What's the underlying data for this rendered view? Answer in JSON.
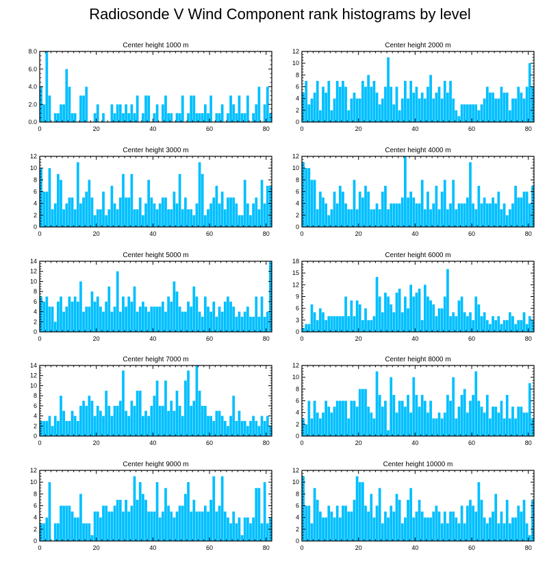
{
  "title": "Radiosonde V Wind Component rank histograms by level",
  "bar_color": "#00bfff",
  "chart_data": [
    {
      "type": "bar",
      "title": "Center height 1000 m",
      "xlim": [
        0,
        82
      ],
      "ylim": [
        0,
        8
      ],
      "xticks": [
        0,
        20,
        40,
        60,
        80
      ],
      "yticks": [
        0,
        2,
        4,
        6,
        8
      ],
      "ytick_labels": [
        "0.0",
        "2.0",
        "4.0",
        "6.0",
        "8.0"
      ],
      "values": [
        4,
        2,
        8,
        3,
        0,
        1,
        1,
        2,
        2,
        6,
        4,
        1,
        1,
        0,
        3,
        3,
        4,
        0,
        0,
        1,
        2,
        0,
        1,
        0,
        0,
        2,
        1,
        2,
        2,
        1,
        2,
        1,
        2,
        1,
        3,
        0,
        1,
        3,
        3,
        0,
        1,
        2,
        0,
        2,
        3,
        1,
        1,
        0,
        1,
        1,
        3,
        0,
        1,
        3,
        3,
        1,
        1,
        1,
        2,
        1,
        3,
        0,
        1,
        1,
        2,
        0,
        1,
        3,
        2,
        1,
        3,
        1,
        1,
        3,
        0,
        1,
        2,
        4,
        0,
        2,
        4,
        1
      ]
    },
    {
      "type": "bar",
      "title": "Center height 2000 m",
      "xlim": [
        0,
        82
      ],
      "ylim": [
        0,
        12
      ],
      "xticks": [
        0,
        20,
        40,
        60,
        80
      ],
      "yticks": [
        0,
        2,
        4,
        6,
        8,
        10,
        12
      ],
      "ytick_labels": [
        "0",
        "2",
        "4",
        "6",
        "8",
        "10",
        "12"
      ],
      "values": [
        5,
        7,
        3,
        4,
        5,
        7,
        2,
        6,
        5,
        7,
        2,
        4,
        7,
        6,
        7,
        6,
        2,
        4,
        5,
        4,
        4,
        7,
        6,
        8,
        6,
        7,
        5,
        3,
        4,
        6,
        11,
        6,
        3,
        6,
        2,
        4,
        7,
        4,
        7,
        5,
        6,
        4,
        5,
        4,
        6,
        8,
        4,
        5,
        6,
        4,
        7,
        5,
        7,
        4,
        2,
        1,
        3,
        3,
        3,
        3,
        3,
        3,
        2,
        3,
        4,
        6,
        5,
        5,
        4,
        4,
        6,
        5,
        5,
        2,
        4,
        4,
        6,
        5,
        4,
        6,
        10,
        6
      ]
    },
    {
      "type": "bar",
      "title": "Center height 3000 m",
      "xlim": [
        0,
        82
      ],
      "ylim": [
        0,
        12
      ],
      "xticks": [
        0,
        20,
        40,
        60,
        80
      ],
      "yticks": [
        0,
        2,
        4,
        6,
        8,
        10,
        12
      ],
      "ytick_labels": [
        "0",
        "2",
        "4",
        "6",
        "8",
        "10",
        "12"
      ],
      "values": [
        10,
        6,
        6,
        10,
        3,
        4,
        9,
        8,
        3,
        4,
        5,
        5,
        3,
        11,
        4,
        5,
        6,
        8,
        5,
        2,
        3,
        3,
        6,
        2,
        3,
        7,
        4,
        3,
        5,
        9,
        5,
        5,
        9,
        3,
        3,
        5,
        2,
        4,
        8,
        5,
        4,
        3,
        4,
        5,
        5,
        3,
        3,
        6,
        4,
        9,
        3,
        5,
        3,
        3,
        2,
        4,
        11,
        9,
        2,
        3,
        4,
        5,
        7,
        4,
        6,
        3,
        5,
        5,
        5,
        4,
        2,
        2,
        8,
        4,
        2,
        4,
        5,
        3,
        8,
        4,
        7,
        7
      ]
    },
    {
      "type": "bar",
      "title": "Center height 4000 m",
      "xlim": [
        0,
        82
      ],
      "ylim": [
        0,
        12
      ],
      "xticks": [
        0,
        20,
        40,
        60,
        80
      ],
      "yticks": [
        0,
        2,
        4,
        6,
        8,
        10,
        12
      ],
      "ytick_labels": [
        "0",
        "2",
        "4",
        "6",
        "8",
        "10",
        "12"
      ],
      "values": [
        11,
        10,
        10,
        8,
        8,
        3,
        6,
        5,
        4,
        2,
        3,
        6,
        4,
        7,
        6,
        4,
        3,
        3,
        8,
        3,
        6,
        5,
        7,
        6,
        3,
        3,
        4,
        3,
        6,
        7,
        3,
        4,
        4,
        4,
        4,
        5,
        12,
        5,
        6,
        5,
        4,
        4,
        8,
        3,
        6,
        3,
        4,
        7,
        3,
        6,
        8,
        3,
        4,
        8,
        3,
        4,
        4,
        4,
        5,
        11,
        4,
        3,
        7,
        4,
        5,
        4,
        4,
        5,
        4,
        6,
        3,
        4,
        2,
        3,
        4,
        7,
        5,
        5,
        6,
        6,
        4,
        7
      ]
    },
    {
      "type": "bar",
      "title": "Center height 5000 m",
      "xlim": [
        0,
        82
      ],
      "ylim": [
        0,
        14
      ],
      "xticks": [
        0,
        20,
        40,
        60,
        80
      ],
      "yticks": [
        0,
        2,
        4,
        6,
        8,
        10,
        12,
        14
      ],
      "ytick_labels": [
        "0",
        "2",
        "4",
        "6",
        "8",
        "10",
        "12",
        "14"
      ],
      "values": [
        7,
        6,
        7,
        5,
        5,
        2,
        6,
        7,
        4,
        5,
        7,
        6,
        7,
        6,
        10,
        4,
        5,
        5,
        8,
        6,
        7,
        5,
        4,
        6,
        9,
        4,
        5,
        12,
        4,
        7,
        5,
        7,
        6,
        9,
        4,
        5,
        6,
        5,
        4,
        5,
        5,
        5,
        5,
        6,
        4,
        7,
        6,
        10,
        8,
        5,
        4,
        4,
        6,
        5,
        9,
        7,
        4,
        3,
        7,
        5,
        4,
        6,
        3,
        5,
        4,
        6,
        7,
        6,
        5,
        3,
        4,
        3,
        4,
        5,
        3,
        3,
        7,
        3,
        7,
        3,
        4,
        14
      ]
    },
    {
      "type": "bar",
      "title": "Center height 6000 m",
      "xlim": [
        0,
        82
      ],
      "ylim": [
        0,
        18
      ],
      "xticks": [
        0,
        20,
        40,
        60,
        80
      ],
      "yticks": [
        0,
        3,
        6,
        9,
        12,
        15,
        18
      ],
      "ytick_labels": [
        "0",
        "3",
        "6",
        "9",
        "12",
        "15",
        "18"
      ],
      "values": [
        1,
        2,
        2,
        7,
        5,
        3,
        6,
        5,
        3,
        4,
        4,
        4,
        4,
        4,
        4,
        9,
        4,
        8,
        4,
        8,
        7,
        3,
        6,
        3,
        3,
        4,
        14,
        9,
        5,
        10,
        9,
        7,
        5,
        10,
        11,
        5,
        9,
        6,
        12,
        9,
        10,
        11,
        3,
        12,
        9,
        8,
        7,
        4,
        6,
        6,
        9,
        16,
        4,
        5,
        4,
        8,
        9,
        5,
        4,
        5,
        3,
        9,
        7,
        4,
        5,
        3,
        2,
        4,
        3,
        4,
        2,
        3,
        3,
        5,
        4,
        2,
        3,
        3,
        5,
        2,
        4,
        3
      ]
    },
    {
      "type": "bar",
      "title": "Center height 7000 m",
      "xlim": [
        0,
        82
      ],
      "ylim": [
        0,
        14
      ],
      "xticks": [
        0,
        20,
        40,
        60,
        80
      ],
      "yticks": [
        0,
        2,
        4,
        6,
        8,
        10,
        12,
        14
      ],
      "ytick_labels": [
        "0",
        "2",
        "4",
        "6",
        "8",
        "10",
        "12",
        "14"
      ],
      "values": [
        3,
        3,
        3,
        4,
        2,
        4,
        3,
        8,
        5,
        3,
        3,
        5,
        4,
        3,
        6,
        7,
        6,
        8,
        7,
        4,
        6,
        5,
        4,
        9,
        6,
        4,
        6,
        6,
        7,
        13,
        5,
        4,
        7,
        6,
        9,
        9,
        4,
        5,
        4,
        6,
        8,
        11,
        6,
        6,
        11,
        5,
        7,
        5,
        9,
        6,
        4,
        11,
        13,
        6,
        7,
        14,
        9,
        6,
        6,
        4,
        4,
        3,
        5,
        5,
        4,
        3,
        2,
        4,
        8,
        3,
        5,
        3,
        3,
        2,
        3,
        4,
        3,
        2,
        4,
        3,
        4,
        2
      ]
    },
    {
      "type": "bar",
      "title": "Center height 8000 m",
      "xlim": [
        0,
        82
      ],
      "ylim": [
        0,
        12
      ],
      "xticks": [
        0,
        20,
        40,
        60,
        80
      ],
      "yticks": [
        0,
        2,
        4,
        6,
        8,
        10,
        12
      ],
      "ytick_labels": [
        "0",
        "2",
        "4",
        "6",
        "8",
        "10",
        "12"
      ],
      "values": [
        3,
        2,
        6,
        3,
        6,
        4,
        3,
        4,
        6,
        5,
        4,
        5,
        6,
        6,
        6,
        6,
        3,
        6,
        6,
        5,
        8,
        8,
        8,
        5,
        4,
        3,
        11,
        7,
        5,
        6,
        1,
        10,
        7,
        4,
        6,
        6,
        5,
        7,
        4,
        10,
        7,
        5,
        7,
        6,
        4,
        6,
        3,
        3,
        4,
        3,
        4,
        7,
        6,
        10,
        3,
        5,
        7,
        8,
        4,
        6,
        7,
        11,
        6,
        5,
        4,
        7,
        3,
        5,
        5,
        4,
        6,
        3,
        7,
        3,
        5,
        3,
        5,
        5,
        4,
        4,
        9,
        3
      ]
    },
    {
      "type": "bar",
      "title": "Center height 9000 m",
      "xlim": [
        0,
        82
      ],
      "ylim": [
        0,
        12
      ],
      "xticks": [
        0,
        20,
        40,
        60,
        80
      ],
      "yticks": [
        0,
        2,
        4,
        6,
        8,
        10,
        12
      ],
      "ytick_labels": [
        "0",
        "2",
        "4",
        "6",
        "8",
        "10",
        "12"
      ],
      "values": [
        3,
        3,
        4,
        10,
        0,
        3,
        3,
        6,
        6,
        6,
        6,
        5,
        4,
        4,
        8,
        3,
        3,
        3,
        1,
        5,
        5,
        4,
        6,
        6,
        5,
        5,
        6,
        7,
        7,
        5,
        7,
        5,
        6,
        11,
        7,
        10,
        8,
        7,
        5,
        5,
        5,
        10,
        4,
        5,
        9,
        6,
        5,
        4,
        5,
        6,
        6,
        8,
        10,
        5,
        7,
        5,
        5,
        5,
        6,
        5,
        7,
        11,
        5,
        6,
        11,
        5,
        4,
        3,
        5,
        3,
        4,
        1,
        4,
        4,
        3,
        4,
        9,
        9,
        3,
        10,
        3,
        4
      ]
    },
    {
      "type": "bar",
      "title": "Center height 10000 m",
      "xlim": [
        0,
        82
      ],
      "ylim": [
        0,
        12
      ],
      "xticks": [
        0,
        20,
        40,
        60,
        80
      ],
      "yticks": [
        0,
        2,
        4,
        6,
        8,
        10,
        12
      ],
      "ytick_labels": [
        "0",
        "2",
        "4",
        "6",
        "8",
        "10",
        "12"
      ],
      "values": [
        11,
        6,
        6,
        3,
        9,
        7,
        5,
        4,
        4,
        6,
        5,
        4,
        6,
        4,
        6,
        6,
        5,
        5,
        7,
        11,
        10,
        10,
        6,
        5,
        8,
        4,
        6,
        9,
        3,
        5,
        4,
        6,
        5,
        8,
        7,
        3,
        4,
        7,
        9,
        4,
        5,
        7,
        5,
        4,
        4,
        4,
        5,
        6,
        5,
        3,
        5,
        3,
        5,
        5,
        4,
        3,
        6,
        3,
        6,
        7,
        6,
        5,
        10,
        7,
        4,
        3,
        4,
        5,
        8,
        3,
        5,
        3,
        7,
        3,
        4,
        4,
        6,
        5,
        7,
        3,
        1,
        7
      ]
    }
  ]
}
